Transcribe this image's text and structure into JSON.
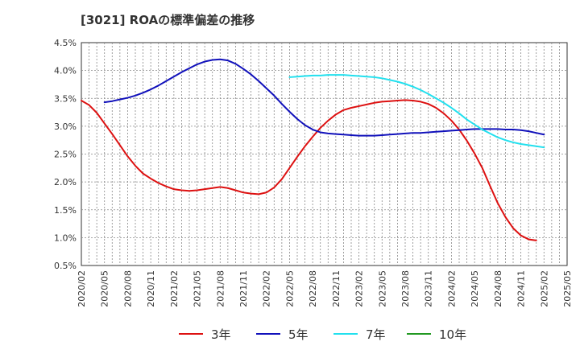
{
  "title": "[3021]  ROAの標準偏差の推移",
  "chart_data": {
    "type": "line",
    "title": "[3021]  ROAの標準偏差の推移",
    "xlabel": "",
    "ylabel": "",
    "x_ticks": [
      "2020/02",
      "2020/05",
      "2020/08",
      "2020/11",
      "2021/02",
      "2021/05",
      "2021/08",
      "2021/11",
      "2022/02",
      "2022/05",
      "2022/08",
      "2022/11",
      "2023/02",
      "2023/05",
      "2023/08",
      "2023/11",
      "2024/02",
      "2024/05",
      "2024/08",
      "2024/11",
      "2025/02",
      "2025/05"
    ],
    "y_ticks": [
      "4.5%",
      "4.0%",
      "3.5%",
      "3.0%",
      "2.5%",
      "2.0%",
      "1.5%",
      "1.0%",
      "0.5%"
    ],
    "ylim": [
      0.5,
      4.5
    ],
    "y_unit": "%",
    "grid": true,
    "legend_position": "bottom",
    "series": [
      {
        "name": "3年",
        "color": "#dd1111",
        "points": [
          [
            "2020/02",
            3.46
          ],
          [
            "2020/03",
            3.38
          ],
          [
            "2020/04",
            3.24
          ],
          [
            "2020/05",
            3.05
          ],
          [
            "2020/06",
            2.86
          ],
          [
            "2020/07",
            2.66
          ],
          [
            "2020/08",
            2.46
          ],
          [
            "2020/09",
            2.29
          ],
          [
            "2020/10",
            2.15
          ],
          [
            "2020/11",
            2.06
          ],
          [
            "2020/12",
            1.98
          ],
          [
            "2021/01",
            1.92
          ],
          [
            "2021/02",
            1.87
          ],
          [
            "2021/03",
            1.85
          ],
          [
            "2021/04",
            1.84
          ],
          [
            "2021/05",
            1.85
          ],
          [
            "2021/06",
            1.87
          ],
          [
            "2021/07",
            1.89
          ],
          [
            "2021/08",
            1.91
          ],
          [
            "2021/09",
            1.89
          ],
          [
            "2021/10",
            1.85
          ],
          [
            "2021/11",
            1.81
          ],
          [
            "2021/12",
            1.79
          ],
          [
            "2022/01",
            1.78
          ],
          [
            "2022/02",
            1.81
          ],
          [
            "2022/03",
            1.9
          ],
          [
            "2022/04",
            2.05
          ],
          [
            "2022/05",
            2.25
          ],
          [
            "2022/06",
            2.45
          ],
          [
            "2022/07",
            2.64
          ],
          [
            "2022/08",
            2.81
          ],
          [
            "2022/09",
            2.97
          ],
          [
            "2022/10",
            3.1
          ],
          [
            "2022/11",
            3.21
          ],
          [
            "2022/12",
            3.29
          ],
          [
            "2023/01",
            3.33
          ],
          [
            "2023/02",
            3.36
          ],
          [
            "2023/03",
            3.39
          ],
          [
            "2023/04",
            3.42
          ],
          [
            "2023/05",
            3.44
          ],
          [
            "2023/06",
            3.45
          ],
          [
            "2023/07",
            3.46
          ],
          [
            "2023/08",
            3.47
          ],
          [
            "2023/09",
            3.46
          ],
          [
            "2023/10",
            3.44
          ],
          [
            "2023/11",
            3.4
          ],
          [
            "2023/12",
            3.33
          ],
          [
            "2024/01",
            3.23
          ],
          [
            "2024/02",
            3.1
          ],
          [
            "2024/03",
            2.94
          ],
          [
            "2024/04",
            2.74
          ],
          [
            "2024/05",
            2.51
          ],
          [
            "2024/06",
            2.25
          ],
          [
            "2024/07",
            1.93
          ],
          [
            "2024/08",
            1.62
          ],
          [
            "2024/09",
            1.37
          ],
          [
            "2024/10",
            1.17
          ],
          [
            "2024/11",
            1.04
          ],
          [
            "2024/12",
            0.97
          ],
          [
            "2025/01",
            0.95
          ]
        ]
      },
      {
        "name": "5年",
        "color": "#1111bb",
        "points": [
          [
            "2020/05",
            3.43
          ],
          [
            "2020/06",
            3.45
          ],
          [
            "2020/07",
            3.48
          ],
          [
            "2020/08",
            3.51
          ],
          [
            "2020/09",
            3.55
          ],
          [
            "2020/10",
            3.6
          ],
          [
            "2020/11",
            3.66
          ],
          [
            "2020/12",
            3.73
          ],
          [
            "2021/01",
            3.81
          ],
          [
            "2021/02",
            3.89
          ],
          [
            "2021/03",
            3.97
          ],
          [
            "2021/04",
            4.04
          ],
          [
            "2021/05",
            4.11
          ],
          [
            "2021/06",
            4.16
          ],
          [
            "2021/07",
            4.19
          ],
          [
            "2021/08",
            4.2
          ],
          [
            "2021/09",
            4.18
          ],
          [
            "2021/10",
            4.12
          ],
          [
            "2021/11",
            4.03
          ],
          [
            "2021/12",
            3.93
          ],
          [
            "2022/01",
            3.81
          ],
          [
            "2022/02",
            3.68
          ],
          [
            "2022/03",
            3.55
          ],
          [
            "2022/04",
            3.4
          ],
          [
            "2022/05",
            3.26
          ],
          [
            "2022/06",
            3.13
          ],
          [
            "2022/07",
            3.02
          ],
          [
            "2022/08",
            2.94
          ],
          [
            "2022/09",
            2.89
          ],
          [
            "2022/10",
            2.87
          ],
          [
            "2022/11",
            2.86
          ],
          [
            "2022/12",
            2.85
          ],
          [
            "2023/01",
            2.84
          ],
          [
            "2023/02",
            2.83
          ],
          [
            "2023/03",
            2.83
          ],
          [
            "2023/04",
            2.83
          ],
          [
            "2023/05",
            2.84
          ],
          [
            "2023/06",
            2.85
          ],
          [
            "2023/07",
            2.86
          ],
          [
            "2023/08",
            2.87
          ],
          [
            "2023/09",
            2.88
          ],
          [
            "2023/10",
            2.88
          ],
          [
            "2023/11",
            2.89
          ],
          [
            "2023/12",
            2.9
          ],
          [
            "2024/01",
            2.91
          ],
          [
            "2024/02",
            2.92
          ],
          [
            "2024/03",
            2.93
          ],
          [
            "2024/04",
            2.94
          ],
          [
            "2024/05",
            2.95
          ],
          [
            "2024/06",
            2.95
          ],
          [
            "2024/07",
            2.95
          ],
          [
            "2024/08",
            2.95
          ],
          [
            "2024/09",
            2.94
          ],
          [
            "2024/10",
            2.94
          ],
          [
            "2024/11",
            2.93
          ],
          [
            "2024/12",
            2.91
          ],
          [
            "2025/01",
            2.88
          ],
          [
            "2025/02",
            2.85
          ]
        ]
      },
      {
        "name": "7年",
        "color": "#22e0ee",
        "points": [
          [
            "2022/05",
            3.88
          ],
          [
            "2022/06",
            3.89
          ],
          [
            "2022/07",
            3.9
          ],
          [
            "2022/08",
            3.91
          ],
          [
            "2022/09",
            3.91
          ],
          [
            "2022/10",
            3.92
          ],
          [
            "2022/11",
            3.92
          ],
          [
            "2022/12",
            3.92
          ],
          [
            "2023/01",
            3.91
          ],
          [
            "2023/02",
            3.9
          ],
          [
            "2023/03",
            3.89
          ],
          [
            "2023/04",
            3.88
          ],
          [
            "2023/05",
            3.86
          ],
          [
            "2023/06",
            3.83
          ],
          [
            "2023/07",
            3.8
          ],
          [
            "2023/08",
            3.76
          ],
          [
            "2023/09",
            3.71
          ],
          [
            "2023/10",
            3.65
          ],
          [
            "2023/11",
            3.58
          ],
          [
            "2023/12",
            3.5
          ],
          [
            "2024/01",
            3.42
          ],
          [
            "2024/02",
            3.33
          ],
          [
            "2024/03",
            3.23
          ],
          [
            "2024/04",
            3.12
          ],
          [
            "2024/05",
            3.03
          ],
          [
            "2024/06",
            2.94
          ],
          [
            "2024/07",
            2.87
          ],
          [
            "2024/08",
            2.8
          ],
          [
            "2024/09",
            2.75
          ],
          [
            "2024/10",
            2.71
          ],
          [
            "2024/11",
            2.68
          ],
          [
            "2024/12",
            2.66
          ],
          [
            "2025/01",
            2.64
          ],
          [
            "2025/02",
            2.62
          ]
        ]
      },
      {
        "name": "10年",
        "color": "#229922",
        "points": []
      }
    ]
  }
}
